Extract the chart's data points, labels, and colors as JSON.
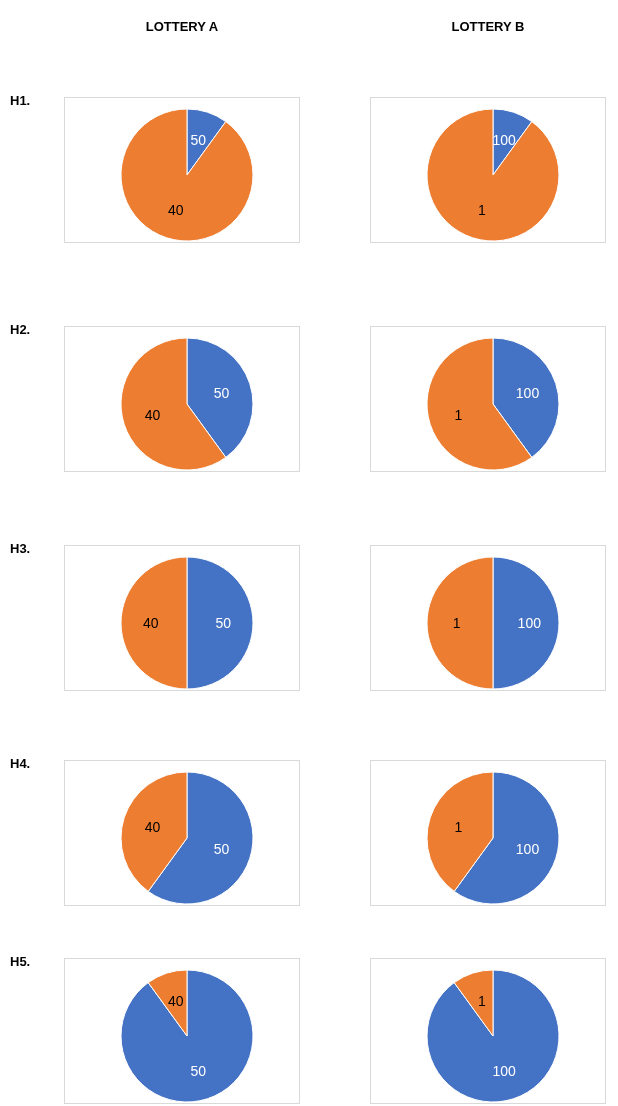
{
  "chart_data": [
    {
      "type": "pie",
      "title": "LOTTERY A",
      "subtitle": "H1.",
      "categories": [
        "50",
        "40"
      ],
      "values": [
        10,
        90
      ],
      "colors": [
        "#4472c4",
        "#ed7d31"
      ]
    },
    {
      "type": "pie",
      "title": "LOTTERY B",
      "categories": [
        "100",
        "1"
      ],
      "values": [
        10,
        90
      ],
      "colors": [
        "#4472c4",
        "#ed7d31"
      ]
    },
    {
      "type": "pie",
      "subtitle": "H2.",
      "categories": [
        "50",
        "40"
      ],
      "values": [
        40,
        60
      ],
      "colors": [
        "#4472c4",
        "#ed7d31"
      ]
    },
    {
      "type": "pie",
      "categories": [
        "100",
        "1"
      ],
      "values": [
        40,
        60
      ],
      "colors": [
        "#4472c4",
        "#ed7d31"
      ]
    },
    {
      "type": "pie",
      "subtitle": "H3.",
      "categories": [
        "50",
        "40"
      ],
      "values": [
        50,
        50
      ],
      "colors": [
        "#4472c4",
        "#ed7d31"
      ]
    },
    {
      "type": "pie",
      "categories": [
        "100",
        "1"
      ],
      "values": [
        50,
        50
      ],
      "colors": [
        "#4472c4",
        "#ed7d31"
      ]
    },
    {
      "type": "pie",
      "subtitle": "H4.",
      "categories": [
        "50",
        "40"
      ],
      "values": [
        60,
        40
      ],
      "colors": [
        "#4472c4",
        "#ed7d31"
      ]
    },
    {
      "type": "pie",
      "categories": [
        "100",
        "1"
      ],
      "values": [
        60,
        40
      ],
      "colors": [
        "#4472c4",
        "#ed7d31"
      ]
    },
    {
      "type": "pie",
      "subtitle": "H5.",
      "categories": [
        "50",
        "40"
      ],
      "values": [
        90,
        10
      ],
      "colors": [
        "#4472c4",
        "#ed7d31"
      ]
    },
    {
      "type": "pie",
      "categories": [
        "100",
        "1"
      ],
      "values": [
        90,
        10
      ],
      "colors": [
        "#4472c4",
        "#ed7d31"
      ]
    }
  ]
}
